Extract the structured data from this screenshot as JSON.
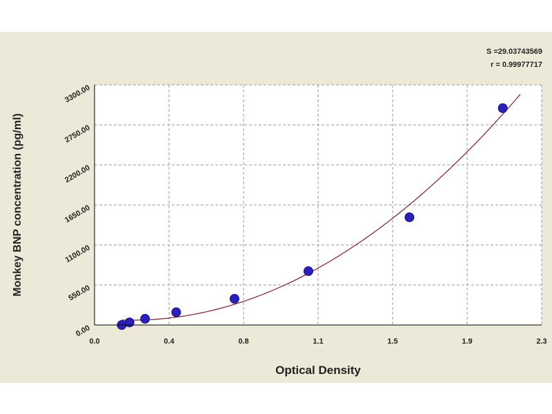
{
  "chart_data": {
    "type": "scatter",
    "title": "",
    "xlabel": "Optical Density",
    "ylabel": "Monkey BNP concentration (pg/ml)",
    "xlim": [
      0.0,
      2.3
    ],
    "ylim": [
      0,
      3300
    ],
    "x_ticks": [
      "0.0",
      "0.4",
      "0.8",
      "1.1",
      "1.5",
      "1.9",
      "2.3"
    ],
    "y_ticks": [
      "0.00",
      "550.00",
      "1100.00",
      "1650.00",
      "2200.00",
      "2750.00",
      "3300.00"
    ],
    "grid": true,
    "points": [
      {
        "x": 0.14,
        "y": 0
      },
      {
        "x": 0.18,
        "y": 35
      },
      {
        "x": 0.26,
        "y": 85
      },
      {
        "x": 0.42,
        "y": 175
      },
      {
        "x": 0.72,
        "y": 360
      },
      {
        "x": 1.1,
        "y": 740
      },
      {
        "x": 1.62,
        "y": 1480
      },
      {
        "x": 2.1,
        "y": 2980
      }
    ],
    "fit_curve": {
      "model": "exponential",
      "x_range": [
        0.14,
        2.19
      ]
    },
    "annotations": [
      "S =29.03743569",
      "r = 0.99977717"
    ],
    "colors": {
      "points": "#2a1fb8",
      "curve": "#7a1f2b",
      "grid": "#9a9a9a",
      "plot_bg": "#ffffff",
      "panel_bg": "#ece9d8"
    }
  }
}
